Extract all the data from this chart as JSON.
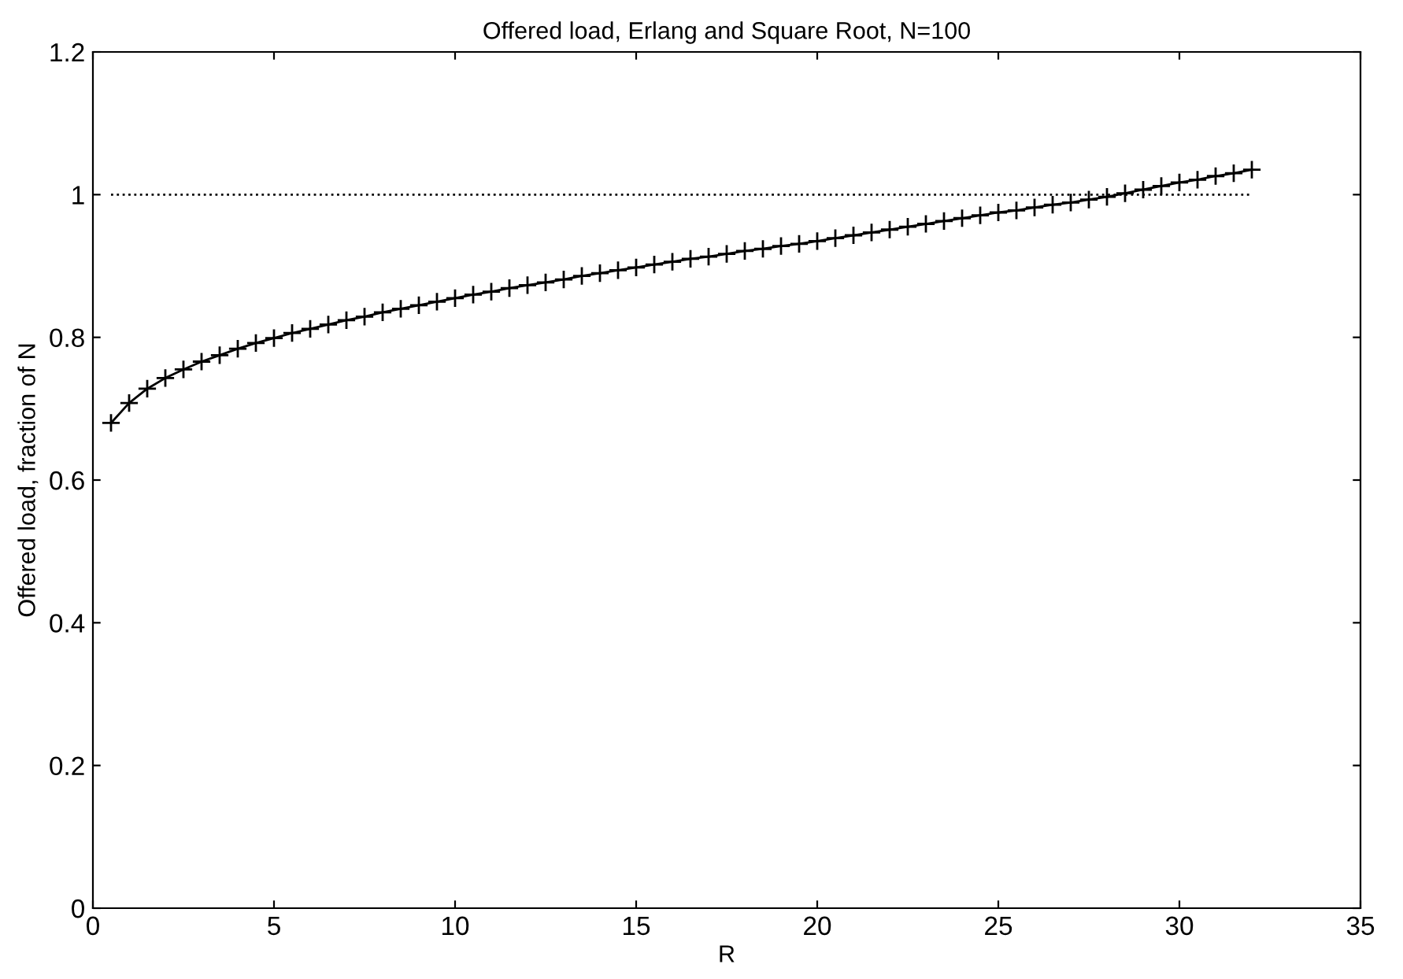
{
  "chart_data": {
    "type": "line",
    "title": "Offered load, Erlang and Square Root, N=100",
    "xlabel": "R",
    "ylabel": "Offered load, fraction of N",
    "xlim": [
      0,
      35
    ],
    "xticks": [
      0,
      5,
      10,
      15,
      20,
      25,
      30,
      35
    ],
    "ylim": [
      0,
      1.2
    ],
    "yticks": [
      0,
      0.2,
      0.4,
      0.6,
      0.8,
      1,
      1.2
    ],
    "grid": false,
    "legend": false,
    "series": [
      {
        "color": "#000000",
        "marker": "cross",
        "line_style": "solid",
        "x": [
          0.5,
          1,
          1.5,
          2,
          2.5,
          3,
          3.5,
          4,
          4.5,
          5,
          5.5,
          6,
          6.5,
          7,
          7.5,
          8,
          8.5,
          9,
          9.5,
          10,
          10.5,
          11,
          11.5,
          12,
          12.5,
          13,
          13.5,
          14,
          14.5,
          15,
          15.5,
          16,
          16.5,
          17,
          17.5,
          18,
          18.5,
          19,
          19.5,
          20,
          20.5,
          21,
          21.5,
          22,
          22.5,
          23,
          23.5,
          24,
          24.5,
          25,
          25.5,
          26,
          26.5,
          27,
          27.5,
          28,
          28.5,
          29,
          29.5,
          30,
          30.5,
          31,
          31.5,
          32
        ],
        "values": [
          0.68,
          0.708,
          0.728,
          0.743,
          0.755,
          0.766,
          0.775,
          0.784,
          0.792,
          0.799,
          0.806,
          0.812,
          0.818,
          0.824,
          0.829,
          0.835,
          0.84,
          0.845,
          0.85,
          0.855,
          0.86,
          0.864,
          0.869,
          0.873,
          0.877,
          0.881,
          0.886,
          0.89,
          0.894,
          0.898,
          0.902,
          0.906,
          0.91,
          0.913,
          0.917,
          0.921,
          0.924,
          0.928,
          0.931,
          0.935,
          0.939,
          0.943,
          0.947,
          0.951,
          0.955,
          0.959,
          0.963,
          0.967,
          0.971,
          0.975,
          0.978,
          0.982,
          0.986,
          0.989,
          0.993,
          0.997,
          1.002,
          1.007,
          1.012,
          1.017,
          1.021,
          1.026,
          1.03,
          1.035
        ]
      },
      {
        "color": "#000000",
        "marker": "none",
        "line_style": "dotted",
        "x": [
          0.5,
          32
        ],
        "values": [
          1,
          1
        ]
      }
    ]
  }
}
